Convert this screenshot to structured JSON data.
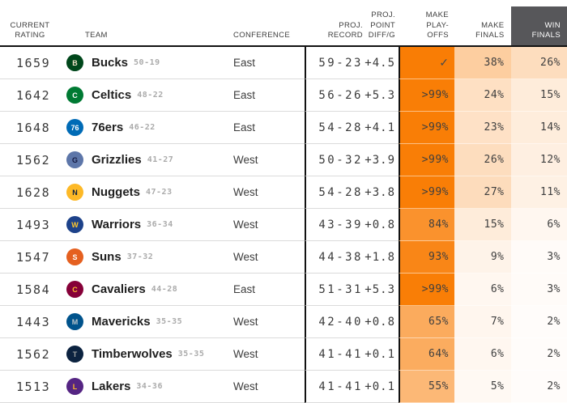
{
  "style": {
    "accent_orange": "#f97d05",
    "header_box_bg": "#57575a",
    "header_box_fg": "#ffffff",
    "rule_black": "#121212",
    "row_separator": "#dbdbdb"
  },
  "chart_data": {
    "type": "table",
    "columns": [
      {
        "id": "rating",
        "label": "CURRENT\nRATING"
      },
      {
        "id": "team",
        "label": "TEAM"
      },
      {
        "id": "conference",
        "label": "CONFERENCE"
      },
      {
        "id": "proj_record",
        "label": "PROJ.\nRECORD"
      },
      {
        "id": "point_diff",
        "label": "PROJ.\nPOINT\nDIFF/G"
      },
      {
        "id": "make_playoffs",
        "label": "MAKE\nPLAY-\nOFFS"
      },
      {
        "id": "make_finals",
        "label": "MAKE\nFINALS"
      },
      {
        "id": "win_finals",
        "label": "WIN\nFINALS"
      }
    ],
    "rows": [
      {
        "rating": "1659",
        "team": "Bucks",
        "record": "50-19",
        "conference": "East",
        "proj_record": "59-23",
        "point_diff": "+4.5",
        "make_playoffs": {
          "label": "✓",
          "pct": 100
        },
        "make_finals": {
          "label": "38%",
          "pct": 38
        },
        "win_finals": {
          "label": "26%",
          "pct": 26
        },
        "logo": {
          "bg": "#00471b",
          "fg": "#eee1c6",
          "text": "B"
        }
      },
      {
        "rating": "1642",
        "team": "Celtics",
        "record": "48-22",
        "conference": "East",
        "proj_record": "56-26",
        "point_diff": "+5.3",
        "make_playoffs": {
          "label": ">99%",
          "pct": 99.5
        },
        "make_finals": {
          "label": "24%",
          "pct": 24
        },
        "win_finals": {
          "label": "15%",
          "pct": 15
        },
        "logo": {
          "bg": "#007a33",
          "fg": "#ffffff",
          "text": "C"
        }
      },
      {
        "rating": "1648",
        "team": "76ers",
        "record": "46-22",
        "conference": "East",
        "proj_record": "54-28",
        "point_diff": "+4.1",
        "make_playoffs": {
          "label": ">99%",
          "pct": 99.5
        },
        "make_finals": {
          "label": "23%",
          "pct": 23
        },
        "win_finals": {
          "label": "14%",
          "pct": 14
        },
        "logo": {
          "bg": "#006bb6",
          "fg": "#ffffff",
          "text": "76"
        }
      },
      {
        "rating": "1562",
        "team": "Grizzlies",
        "record": "41-27",
        "conference": "West",
        "proj_record": "50-32",
        "point_diff": "+3.9",
        "make_playoffs": {
          "label": ">99%",
          "pct": 99.5
        },
        "make_finals": {
          "label": "26%",
          "pct": 26
        },
        "win_finals": {
          "label": "12%",
          "pct": 12
        },
        "logo": {
          "bg": "#5d76a9",
          "fg": "#12173f",
          "text": "G"
        }
      },
      {
        "rating": "1628",
        "team": "Nuggets",
        "record": "47-23",
        "conference": "West",
        "proj_record": "54-28",
        "point_diff": "+3.8",
        "make_playoffs": {
          "label": ">99%",
          "pct": 99.5
        },
        "make_finals": {
          "label": "27%",
          "pct": 27
        },
        "win_finals": {
          "label": "11%",
          "pct": 11
        },
        "logo": {
          "bg": "#fdb927",
          "fg": "#0e2240",
          "text": "N"
        }
      },
      {
        "rating": "1493",
        "team": "Warriors",
        "record": "36-34",
        "conference": "West",
        "proj_record": "43-39",
        "point_diff": "+0.8",
        "make_playoffs": {
          "label": "84%",
          "pct": 84
        },
        "make_finals": {
          "label": "15%",
          "pct": 15
        },
        "win_finals": {
          "label": "6%",
          "pct": 6
        },
        "logo": {
          "bg": "#1d428a",
          "fg": "#ffc72c",
          "text": "W"
        }
      },
      {
        "rating": "1547",
        "team": "Suns",
        "record": "37-32",
        "conference": "West",
        "proj_record": "44-38",
        "point_diff": "+1.8",
        "make_playoffs": {
          "label": "93%",
          "pct": 93
        },
        "make_finals": {
          "label": "9%",
          "pct": 9
        },
        "win_finals": {
          "label": "3%",
          "pct": 3
        },
        "logo": {
          "bg": "#e56020",
          "fg": "#ffffff",
          "text": "S"
        }
      },
      {
        "rating": "1584",
        "team": "Cavaliers",
        "record": "44-28",
        "conference": "East",
        "proj_record": "51-31",
        "point_diff": "+5.3",
        "make_playoffs": {
          "label": ">99%",
          "pct": 99.5
        },
        "make_finals": {
          "label": "6%",
          "pct": 6
        },
        "win_finals": {
          "label": "3%",
          "pct": 3
        },
        "logo": {
          "bg": "#860038",
          "fg": "#fdbb30",
          "text": "C"
        }
      },
      {
        "rating": "1443",
        "team": "Mavericks",
        "record": "35-35",
        "conference": "West",
        "proj_record": "42-40",
        "point_diff": "+0.8",
        "make_playoffs": {
          "label": "65%",
          "pct": 65
        },
        "make_finals": {
          "label": "7%",
          "pct": 7
        },
        "win_finals": {
          "label": "2%",
          "pct": 2
        },
        "logo": {
          "bg": "#00538c",
          "fg": "#b8c4ca",
          "text": "M"
        }
      },
      {
        "rating": "1562",
        "team": "Timberwolves",
        "record": "35-35",
        "conference": "West",
        "proj_record": "41-41",
        "point_diff": "+0.1",
        "make_playoffs": {
          "label": "64%",
          "pct": 64
        },
        "make_finals": {
          "label": "6%",
          "pct": 6
        },
        "win_finals": {
          "label": "2%",
          "pct": 2
        },
        "logo": {
          "bg": "#0c2340",
          "fg": "#9ea2a2",
          "text": "T"
        }
      },
      {
        "rating": "1513",
        "team": "Lakers",
        "record": "34-36",
        "conference": "West",
        "proj_record": "41-41",
        "point_diff": "+0.1",
        "make_playoffs": {
          "label": "55%",
          "pct": 55
        },
        "make_finals": {
          "label": "5%",
          "pct": 5
        },
        "win_finals": {
          "label": "2%",
          "pct": 2
        },
        "logo": {
          "bg": "#552583",
          "fg": "#fdb927",
          "text": "L"
        }
      }
    ]
  }
}
